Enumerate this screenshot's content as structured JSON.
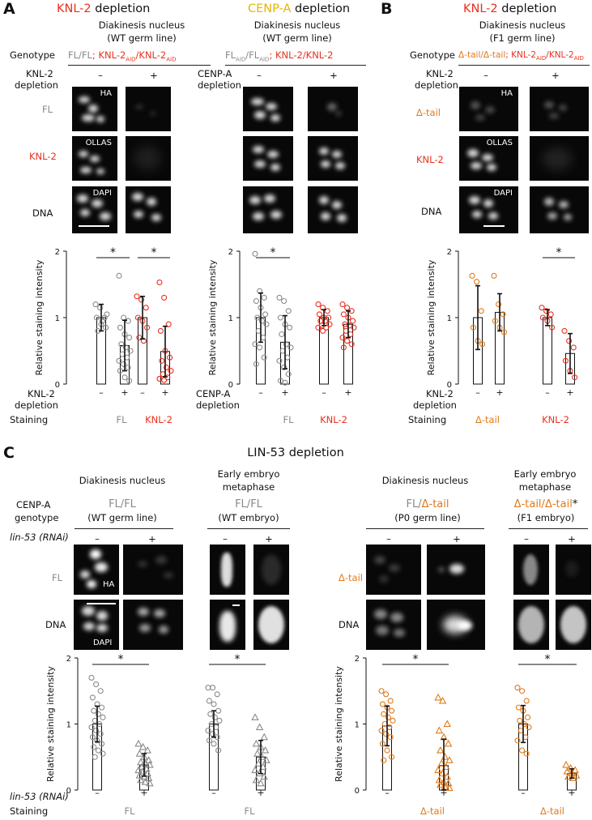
{
  "panels": {
    "A1": {
      "letter": "A",
      "title": {
        "prefix": "KNL-2",
        "suffix": " depletion"
      },
      "subtitle": [
        "Diakinesis nucleus",
        "(WT germ line)"
      ],
      "genotype_label": "Genotype",
      "genotype": {
        "p1": "FL/FL",
        "p2": "; ",
        "p3": "KNL-2",
        "p3sub": "AID",
        "p4": "/KNL-2",
        "p4sub": "AID"
      },
      "depletion_label": [
        "KNL-2",
        "depletion"
      ],
      "signs": [
        "–",
        "+"
      ],
      "rows": [
        "FL",
        "KNL-2",
        "DNA"
      ],
      "stains": [
        "HA",
        "OLLAS",
        "DAPI"
      ]
    },
    "A2": {
      "title": {
        "prefix": "CENP-A",
        "suffix": " depletion"
      },
      "subtitle": [
        "Diakinesis nucleus",
        "(WT germ line)"
      ],
      "genotype": {
        "p1": "FL",
        "p1sub": "AID",
        "p2": "/FL",
        "p2sub": "AID",
        "p3": "; ",
        "p4": "KNL-2/KNL-2"
      },
      "depletion_label": [
        "CENP-A",
        "depletion"
      ],
      "signs": [
        "–",
        "+"
      ]
    },
    "B": {
      "letter": "B",
      "title": {
        "prefix": "KNL-2",
        "suffix": " depletion"
      },
      "subtitle": [
        "Diakinesis nucleus",
        "(F1 germ line)"
      ],
      "genotype_label": "Genotype",
      "genotype": {
        "p1": "Δ-tail/Δ-tail",
        "p2": "; ",
        "p3": "KNL-2",
        "p3sub": "AID",
        "p4": "/KNL-2",
        "p4sub": "AID"
      },
      "depletion_label": [
        "KNL-2",
        "depletion"
      ],
      "signs": [
        "–",
        "+"
      ],
      "rows": [
        "Δ-tail",
        "KNL-2",
        "DNA"
      ],
      "stains": [
        "HA",
        "OLLAS",
        "DAPI"
      ]
    },
    "C": {
      "letter": "C",
      "title": "LIN-53 depletion",
      "sub1": "Diakinesis nucleus",
      "sub2": [
        "Early embryo",
        "metaphase"
      ],
      "sub3": "Diakinesis nucleus",
      "sub4": [
        "Early embryo",
        "metaphase"
      ],
      "cenp_label": [
        "CENP-A",
        "genotype"
      ],
      "geno1": {
        "a": "FL",
        "b": "/",
        "c": "FL",
        "d": "(WT germ line)"
      },
      "geno2": {
        "a": "FL",
        "b": "/",
        "c": "FL",
        "d": "(WT embryo)"
      },
      "geno3": {
        "a": "FL",
        "b": "/",
        "c": "Δ-tail",
        "d": "(P0 germ line)"
      },
      "geno4": {
        "a": "Δ-tail",
        "b": "/",
        "c": "Δ-tail",
        "d": "*",
        "e": "(F1 embryo)"
      },
      "rnai_label": "lin-53 (RNAi)",
      "signs": [
        "–",
        "+"
      ],
      "rows_left": [
        "FL",
        "DNA"
      ],
      "rows_right": [
        "Δ-tail",
        "DNA"
      ],
      "stains": [
        "HA",
        "DAPI"
      ]
    }
  },
  "axis": {
    "ylabel": "Relative staining intensity",
    "yticks": [
      "0",
      "1",
      "2"
    ],
    "star": "*"
  },
  "bottom_labels": {
    "staining": "Staining",
    "A1": {
      "dep": [
        "KNL-2",
        "depletion"
      ],
      "stain": [
        "FL",
        "KNL-2"
      ]
    },
    "A2": {
      "dep": [
        "CENP-A",
        "depletion"
      ],
      "stain": [
        "FL",
        "KNL-2"
      ]
    },
    "B": {
      "dep": [
        "KNL-2",
        "depletion"
      ],
      "stain": [
        "Δ-tail",
        "KNL-2"
      ]
    },
    "C": {
      "rnai": "lin-53 (RNAi)",
      "stain": [
        "FL",
        "FL",
        "Δ-tail",
        "Δ-tail"
      ]
    }
  },
  "colors": {
    "gray": "#8a8a8a",
    "red": "#e8301e",
    "yellow": "#e8b400",
    "orange": "#e07a1a"
  },
  "chart_data": [
    {
      "type": "bar",
      "panel": "A1",
      "ylim": [
        0,
        2
      ],
      "categories": [
        "FL –",
        "FL +",
        "KNL-2 –",
        "KNL-2 +"
      ],
      "values": [
        1.0,
        0.58,
        1.0,
        0.49
      ],
      "errors": [
        0.2,
        0.38,
        0.32,
        0.38
      ],
      "points": [
        [
          1.2,
          1.15,
          1.0,
          1.0,
          0.9,
          0.85,
          0.8,
          0.95,
          1.05
        ],
        [
          1.63,
          1.0,
          0.95,
          0.85,
          0.75,
          0.7,
          0.6,
          0.55,
          0.5,
          0.45,
          0.4,
          0.35,
          0.3,
          0.25,
          0.2,
          0.1,
          0.05
        ],
        [
          1.32,
          1.27,
          1.15,
          1.0,
          0.95,
          0.85,
          0.7,
          0.65
        ],
        [
          1.53,
          1.3,
          0.9,
          0.8,
          0.5,
          0.4,
          0.35,
          0.25,
          0.2,
          0.15,
          0.1,
          0.08,
          0.06
        ]
      ],
      "marker_colors": [
        "gray",
        "gray",
        "red",
        "red"
      ],
      "marker": [
        "circle",
        "circle",
        "circle",
        "circle"
      ],
      "significance": [
        [
          0,
          1
        ],
        [
          2,
          3
        ]
      ]
    },
    {
      "type": "bar",
      "panel": "A2",
      "ylim": [
        0,
        2
      ],
      "categories": [
        "FL –",
        "FL +",
        "KNL-2 –",
        "KNL-2 +"
      ],
      "values": [
        1.0,
        0.63,
        1.0,
        0.9
      ],
      "errors": [
        0.37,
        0.4,
        0.12,
        0.2
      ],
      "points": [
        [
          1.96,
          1.4,
          1.3,
          1.25,
          1.15,
          1.05,
          1.0,
          0.95,
          0.9,
          0.8,
          0.7,
          0.6,
          0.55,
          0.4,
          0.3
        ],
        [
          1.3,
          1.25,
          1.1,
          1.0,
          0.9,
          0.85,
          0.75,
          0.6,
          0.55,
          0.5,
          0.4,
          0.35,
          0.25,
          0.15,
          0.05,
          0.02
        ],
        [
          1.2,
          1.15,
          1.1,
          1.05,
          1.0,
          1.0,
          0.95,
          0.95,
          0.9,
          0.88,
          0.85,
          0.85,
          0.8
        ],
        [
          1.2,
          1.15,
          1.1,
          1.05,
          1.0,
          0.95,
          0.9,
          0.88,
          0.85,
          0.8,
          0.75,
          0.7,
          0.65,
          0.6,
          0.55
        ]
      ],
      "marker_colors": [
        "gray",
        "gray",
        "red",
        "red"
      ],
      "marker": [
        "circle",
        "circle",
        "circle",
        "circle"
      ],
      "significance": [
        [
          0,
          1
        ]
      ]
    },
    {
      "type": "bar",
      "panel": "B",
      "ylim": [
        0,
        2
      ],
      "categories": [
        "Δ-tail –",
        "Δ-tail +",
        "KNL-2 –",
        "KNL-2 +"
      ],
      "values": [
        1.0,
        1.08,
        1.0,
        0.46
      ],
      "errors": [
        0.48,
        0.28,
        0.12,
        0.3
      ],
      "points": [
        [
          1.63,
          1.54,
          1.1,
          0.85,
          0.65,
          0.6
        ],
        [
          1.63,
          1.2,
          1.05,
          0.95,
          0.85,
          0.78
        ],
        [
          1.15,
          1.1,
          1.05,
          1.0,
          0.95,
          0.85
        ],
        [
          0.8,
          0.65,
          0.55,
          0.35,
          0.2,
          0.1
        ]
      ],
      "marker_colors": [
        "orange",
        "orange",
        "red",
        "red"
      ],
      "marker": [
        "circle",
        "circle",
        "circle",
        "circle"
      ],
      "significance": [
        [
          2,
          3
        ]
      ]
    },
    {
      "type": "bar",
      "panel": "C-left",
      "ylim": [
        0,
        2
      ],
      "categories": [
        "FL germ –",
        "FL germ +",
        "FL embryo –",
        "FL embryo +"
      ],
      "values": [
        1.0,
        0.38,
        1.0,
        0.5
      ],
      "errors": [
        0.27,
        0.17,
        0.2,
        0.25
      ],
      "points": [
        [
          1.7,
          1.6,
          1.5,
          1.4,
          1.3,
          1.25,
          1.2,
          1.15,
          1.1,
          1.05,
          1.0,
          0.95,
          0.9,
          0.85,
          0.8,
          0.75,
          0.7,
          0.65,
          0.6,
          0.55,
          0.5
        ],
        [
          0.7,
          0.65,
          0.6,
          0.55,
          0.5,
          0.45,
          0.42,
          0.4,
          0.38,
          0.35,
          0.32,
          0.3,
          0.28,
          0.25,
          0.22,
          0.2,
          0.18,
          0.15,
          0.12,
          0.1
        ],
        [
          1.55,
          1.55,
          1.45,
          1.35,
          1.3,
          1.2,
          1.15,
          1.1,
          1.05,
          1.0,
          0.95,
          0.9,
          0.85,
          0.8,
          0.75,
          0.7,
          0.6
        ],
        [
          1.1,
          0.95,
          0.8,
          0.7,
          0.65,
          0.6,
          0.55,
          0.5,
          0.45,
          0.4,
          0.35,
          0.3,
          0.25,
          0.2,
          0.15,
          0.1
        ]
      ],
      "marker_colors": [
        "gray",
        "gray",
        "gray",
        "gray"
      ],
      "marker": [
        "circle",
        "triangle",
        "circle",
        "triangle"
      ],
      "significance": [
        [
          0,
          1
        ],
        [
          2,
          3
        ]
      ]
    },
    {
      "type": "bar",
      "panel": "C-right",
      "ylim": [
        0,
        2
      ],
      "categories": [
        "Δ-tail germ –",
        "Δ-tail germ +",
        "Δ-tail embryo –",
        "Δ-tail embryo +"
      ],
      "values": [
        0.97,
        0.37,
        1.0,
        0.25
      ],
      "errors": [
        0.3,
        0.4,
        0.28,
        0.07
      ],
      "points": [
        [
          1.5,
          1.45,
          1.35,
          1.3,
          1.25,
          1.2,
          1.15,
          1.1,
          1.05,
          1.0,
          0.95,
          0.9,
          0.85,
          0.8,
          0.7,
          0.6,
          0.5,
          0.45
        ],
        [
          1.4,
          1.35,
          1.0,
          0.9,
          0.8,
          0.7,
          0.6,
          0.5,
          0.45,
          0.4,
          0.35,
          0.3,
          0.25,
          0.2,
          0.15,
          0.12,
          0.1,
          0.08,
          0.05,
          0.03
        ],
        [
          1.55,
          1.5,
          1.35,
          1.25,
          1.2,
          1.1,
          1.05,
          1.0,
          0.95,
          0.9,
          0.8,
          0.75,
          0.6,
          0.55
        ],
        [
          0.38,
          0.33,
          0.3,
          0.28,
          0.25,
          0.22,
          0.2,
          0.18
        ]
      ],
      "marker_colors": [
        "orange",
        "orange",
        "orange",
        "orange"
      ],
      "marker": [
        "circle",
        "triangle",
        "circle",
        "triangle"
      ],
      "significance": [
        [
          0,
          1
        ],
        [
          2,
          3
        ]
      ]
    }
  ]
}
